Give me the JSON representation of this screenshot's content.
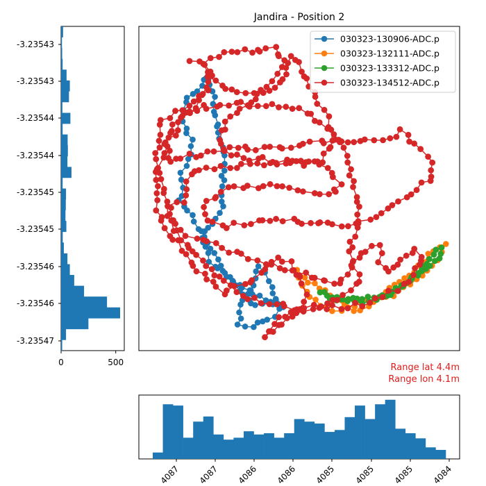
{
  "chart_data": {
    "type": "scatter",
    "title": "Jandira - Position 2",
    "legend": {
      "placement": "top-right",
      "entries": [
        {
          "name": "030323-130906-ADC.p",
          "color": "#1f77b4"
        },
        {
          "name": "030323-132111-ADC.p",
          "color": "#ff7f0e"
        },
        {
          "name": "030323-133312-ADC.p",
          "color": "#2ca02c"
        },
        {
          "name": "030323-134512-ADC.p",
          "color": "#d62728"
        }
      ]
    },
    "annotations": {
      "range_lat": "Range lat 4.4m",
      "range_lon": "Range lon 4.1m"
    },
    "lat_histogram": {
      "orientation": "horizontal",
      "color": "#1f77b4",
      "tick_labels": [
        "-3.23543",
        "-3.23543",
        "-3.23544",
        "-3.23544",
        "-3.23545",
        "-3.23545",
        "-3.23546",
        "-3.23546",
        "-3.23547"
      ],
      "count_ticks": [
        0,
        500
      ],
      "count_range": [
        0,
        540
      ],
      "counts": [
        18,
        8,
        10,
        14,
        50,
        80,
        72,
        12,
        85,
        14,
        60,
        62,
        58,
        95,
        14,
        45,
        43,
        40,
        48,
        15,
        25,
        58,
        80,
        120,
        210,
        420,
        540,
        250,
        45,
        10
      ]
    },
    "lon_histogram": {
      "orientation": "vertical",
      "color": "#1f77b4",
      "tick_labels": [
        "4087",
        "4087",
        "4086",
        "4086",
        "4085",
        "4085",
        "4085",
        "4084"
      ],
      "count_range": [
        0,
        95
      ],
      "counts": [
        10,
        85,
        83,
        33,
        58,
        66,
        38,
        30,
        33,
        43,
        38,
        40,
        33,
        40,
        62,
        58,
        55,
        42,
        45,
        65,
        83,
        62,
        85,
        92,
        47,
        40,
        32,
        18,
        14
      ]
    }
  }
}
